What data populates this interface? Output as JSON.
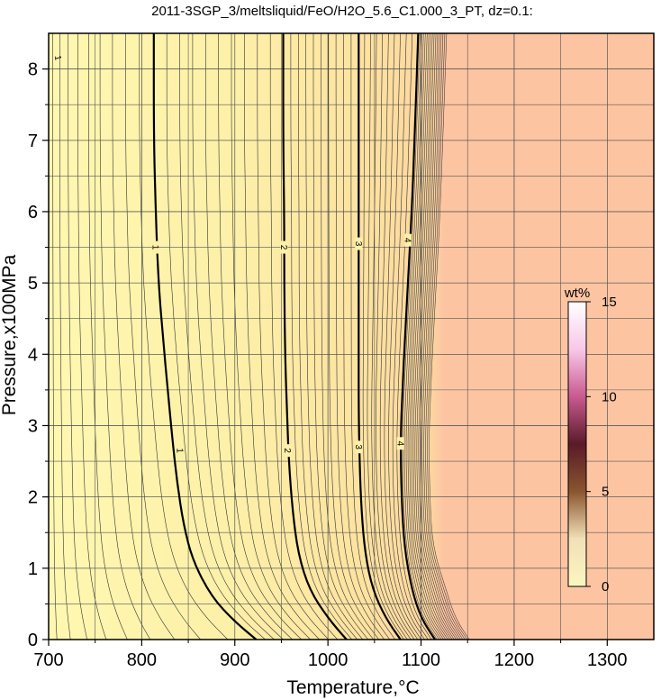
{
  "chart_data": {
    "type": "contour",
    "title": "2011-3SGP_3/meltsliquid/FeO/H2O_5.6_C1.000_3_PT, dz=0.1:",
    "xlabel": "Temperature,°C",
    "ylabel": "Pressure,x100MPa",
    "xlim": [
      700,
      1350
    ],
    "ylim": [
      0,
      8.5
    ],
    "xticks": [
      "700",
      "800",
      "900",
      "1000",
      "1100",
      "1200",
      "1300"
    ],
    "yticks": [
      "0",
      "1",
      "2",
      "3",
      "4",
      "5",
      "6",
      "7",
      "8"
    ],
    "grid": true,
    "contour_interval": 0.1,
    "field_colors": {
      "low": "#fff7b0",
      "high": "#fdc4a2"
    },
    "major_contours": [
      {
        "level": "1",
        "points": [
          [
            923,
            0
          ],
          [
            900,
            0.25
          ],
          [
            875,
            0.6
          ],
          [
            855,
            1.1
          ],
          [
            845,
            1.6
          ],
          [
            838,
            2.2
          ],
          [
            833,
            2.8
          ],
          [
            828,
            3.5
          ],
          [
            823,
            4.2
          ],
          [
            818,
            5.0
          ],
          [
            815,
            6.0
          ],
          [
            813,
            7.0
          ],
          [
            813,
            8.5
          ]
        ],
        "label_positions": [
          [
            841,
            2.65
          ],
          [
            815,
            5.5
          ]
        ]
      },
      {
        "level": "2",
        "points": [
          [
            1020,
            0
          ],
          [
            1000,
            0.3
          ],
          [
            980,
            0.7
          ],
          [
            968,
            1.2
          ],
          [
            962,
            1.8
          ],
          [
            958,
            2.5
          ],
          [
            956,
            3.2
          ],
          [
            954,
            4.0
          ],
          [
            953,
            5.0
          ],
          [
            953,
            6.0
          ],
          [
            952,
            7.0
          ],
          [
            952,
            8.5
          ]
        ],
        "label_positions": [
          [
            957,
            2.65
          ],
          [
            953,
            5.5
          ]
        ]
      },
      {
        "level": "3",
        "points": [
          [
            1078,
            0
          ],
          [
            1062,
            0.3
          ],
          [
            1048,
            0.7
          ],
          [
            1040,
            1.2
          ],
          [
            1036,
            1.8
          ],
          [
            1034,
            2.5
          ],
          [
            1033,
            3.2
          ],
          [
            1033,
            4.0
          ],
          [
            1033,
            5.0
          ],
          [
            1033,
            6.0
          ],
          [
            1033,
            7.0
          ],
          [
            1033,
            8.5
          ]
        ],
        "label_positions": [
          [
            1033,
            2.7
          ],
          [
            1033,
            5.55
          ]
        ]
      },
      {
        "level": "4",
        "points": [
          [
            1115,
            0
          ],
          [
            1100,
            0.3
          ],
          [
            1090,
            0.7
          ],
          [
            1082,
            1.3
          ],
          [
            1079,
            2.0
          ],
          [
            1078,
            2.8
          ],
          [
            1080,
            3.5
          ],
          [
            1083,
            4.3
          ],
          [
            1086,
            5.0
          ],
          [
            1090,
            6.0
          ],
          [
            1093,
            7.0
          ],
          [
            1097,
            8.5
          ]
        ],
        "label_positions": [
          [
            1078,
            2.75
          ],
          [
            1086,
            5.6
          ]
        ]
      }
    ],
    "edge_contour_label": "1",
    "colorbar": {
      "label": "wt%",
      "min": 0,
      "max": 15,
      "ticks": [
        "0",
        "5",
        "10",
        "15"
      ],
      "stops": [
        "#fbf6c0",
        "#f2e0b8",
        "#8a5530",
        "#5a1a28",
        "#c85a90",
        "#f8c8e8",
        "#ffffff"
      ]
    }
  }
}
